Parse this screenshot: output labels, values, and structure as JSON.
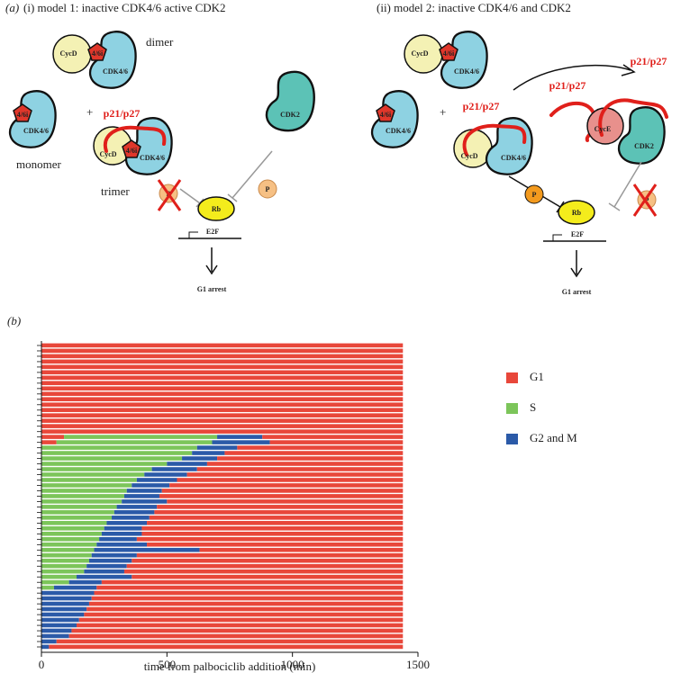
{
  "diagram": {
    "panel_label": "(a)",
    "model1": {
      "heading": "(i) model 1: inactive CDK4/6 active CDK2",
      "texts": [
        "CycD",
        "4/6i",
        "CDK4/6",
        "dimer",
        "4/6i",
        "CDK4/6",
        "monomer",
        "+",
        "p21/p27",
        "CycD",
        "4/6i",
        "CDK4/6",
        "trimer",
        "CDK2",
        "P",
        "P",
        "Rb",
        "E2F",
        "G1 arrest"
      ]
    },
    "model2": {
      "heading": "(ii) model 2: inactive CDK4/6 and CDK2",
      "texts": [
        "CycD",
        "4/6i",
        "CDK4/6",
        "4/6i",
        "CDK4/6",
        "+",
        "p21/p27",
        "CycD",
        "CDK4/6",
        "p21/p27",
        "p21/p27",
        "CycE",
        "CDK2",
        "P",
        "P",
        "Rb",
        "E2F",
        "G1 arrest"
      ]
    }
  },
  "chart_data": {
    "type": "timeline",
    "panel_label": "(b)",
    "xlabel": "time from palbociclib addition (min)",
    "xlim": [
      0,
      1500
    ],
    "xticks": [
      0,
      500,
      1000,
      1500
    ],
    "series": [
      {
        "name": "G1",
        "color": "#e8473a"
      },
      {
        "name": "S",
        "color": "#7cc55a"
      },
      {
        "name": "G2 and M",
        "color": "#2b5aa8"
      }
    ],
    "cells": [
      [
        [
          "G1",
          1440
        ]
      ],
      [
        [
          "G1",
          1440
        ]
      ],
      [
        [
          "G1",
          1440
        ]
      ],
      [
        [
          "G1",
          1440
        ]
      ],
      [
        [
          "G1",
          1440
        ]
      ],
      [
        [
          "G1",
          1440
        ]
      ],
      [
        [
          "G1",
          1440
        ]
      ],
      [
        [
          "G1",
          1440
        ]
      ],
      [
        [
          "G1",
          1440
        ]
      ],
      [
        [
          "G1",
          1440
        ]
      ],
      [
        [
          "G1",
          1440
        ]
      ],
      [
        [
          "G1",
          1440
        ]
      ],
      [
        [
          "G1",
          1440
        ]
      ],
      [
        [
          "G1",
          1440
        ]
      ],
      [
        [
          "G1",
          1440
        ]
      ],
      [
        [
          "G1",
          1440
        ]
      ],
      [
        [
          "G1",
          1440
        ]
      ],
      [
        [
          "G1",
          90
        ],
        [
          "S",
          610
        ],
        [
          "G2 and M",
          180
        ],
        [
          "G1",
          560
        ]
      ],
      [
        [
          "G1",
          60
        ],
        [
          "S",
          620
        ],
        [
          "G2 and M",
          230
        ],
        [
          "G1",
          530
        ]
      ],
      [
        [
          "S",
          620
        ],
        [
          "G2 and M",
          160
        ],
        [
          "G1",
          660
        ]
      ],
      [
        [
          "S",
          600
        ],
        [
          "G2 and M",
          130
        ],
        [
          "G1",
          710
        ]
      ],
      [
        [
          "S",
          560
        ],
        [
          "G2 and M",
          140
        ],
        [
          "G1",
          740
        ]
      ],
      [
        [
          "S",
          500
        ],
        [
          "G2 and M",
          160
        ],
        [
          "G1",
          780
        ]
      ],
      [
        [
          "S",
          440
        ],
        [
          "G2 and M",
          180
        ],
        [
          "G1",
          820
        ]
      ],
      [
        [
          "S",
          410
        ],
        [
          "G2 and M",
          170
        ],
        [
          "G1",
          860
        ]
      ],
      [
        [
          "S",
          380
        ],
        [
          "G2 and M",
          160
        ],
        [
          "G1",
          900
        ]
      ],
      [
        [
          "S",
          360
        ],
        [
          "G2 and M",
          150
        ],
        [
          "G1",
          930
        ]
      ],
      [
        [
          "S",
          340
        ],
        [
          "G2 and M",
          140
        ],
        [
          "G1",
          960
        ]
      ],
      [
        [
          "S",
          330
        ],
        [
          "G2 and M",
          140
        ],
        [
          "G1",
          970
        ]
      ],
      [
        [
          "S",
          320
        ],
        [
          "G2 and M",
          180
        ],
        [
          "G1",
          940
        ]
      ],
      [
        [
          "S",
          300
        ],
        [
          "G2 and M",
          160
        ],
        [
          "G1",
          980
        ]
      ],
      [
        [
          "S",
          290
        ],
        [
          "G2 and M",
          160
        ],
        [
          "G1",
          990
        ]
      ],
      [
        [
          "S",
          280
        ],
        [
          "G2 and M",
          150
        ],
        [
          "G1",
          1010
        ]
      ],
      [
        [
          "S",
          260
        ],
        [
          "G2 and M",
          160
        ],
        [
          "G1",
          1020
        ]
      ],
      [
        [
          "S",
          250
        ],
        [
          "G2 and M",
          150
        ],
        [
          "G1",
          1040
        ]
      ],
      [
        [
          "S",
          240
        ],
        [
          "G2 and M",
          160
        ],
        [
          "G1",
          1040
        ]
      ],
      [
        [
          "S",
          230
        ],
        [
          "G2 and M",
          150
        ],
        [
          "G1",
          1060
        ]
      ],
      [
        [
          "S",
          220
        ],
        [
          "G2 and M",
          200
        ],
        [
          "G1",
          1020
        ]
      ],
      [
        [
          "S",
          210
        ],
        [
          "G2 and M",
          420
        ],
        [
          "G1",
          810
        ]
      ],
      [
        [
          "S",
          200
        ],
        [
          "G2 and M",
          180
        ],
        [
          "G1",
          1060
        ]
      ],
      [
        [
          "S",
          190
        ],
        [
          "G2 and M",
          170
        ],
        [
          "G1",
          1080
        ]
      ],
      [
        [
          "S",
          180
        ],
        [
          "G2 and M",
          160
        ],
        [
          "G1",
          1100
        ]
      ],
      [
        [
          "S",
          170
        ],
        [
          "G2 and M",
          160
        ],
        [
          "G1",
          1110
        ]
      ],
      [
        [
          "S",
          140
        ],
        [
          "G2 and M",
          220
        ],
        [
          "G1",
          1080
        ]
      ],
      [
        [
          "S",
          110
        ],
        [
          "G2 and M",
          130
        ],
        [
          "G1",
          1200
        ]
      ],
      [
        [
          "S",
          50
        ],
        [
          "G2 and M",
          170
        ],
        [
          "G1",
          1220
        ]
      ],
      [
        [
          "G2 and M",
          210
        ],
        [
          "G1",
          1230
        ]
      ],
      [
        [
          "G2 and M",
          200
        ],
        [
          "G1",
          1240
        ]
      ],
      [
        [
          "G2 and M",
          190
        ],
        [
          "G1",
          1250
        ]
      ],
      [
        [
          "G2 and M",
          180
        ],
        [
          "G1",
          1260
        ]
      ],
      [
        [
          "G2 and M",
          170
        ],
        [
          "G1",
          1270
        ]
      ],
      [
        [
          "G2 and M",
          150
        ],
        [
          "G1",
          1290
        ]
      ],
      [
        [
          "G2 and M",
          140
        ],
        [
          "G1",
          1300
        ]
      ],
      [
        [
          "G2 and M",
          120
        ],
        [
          "G1",
          1320
        ]
      ],
      [
        [
          "G2 and M",
          110
        ],
        [
          "G1",
          1330
        ]
      ],
      [
        [
          "G2 and M",
          60
        ],
        [
          "G1",
          1380
        ]
      ],
      [
        [
          "G2 and M",
          30
        ],
        [
          "G1",
          1410
        ]
      ]
    ]
  }
}
